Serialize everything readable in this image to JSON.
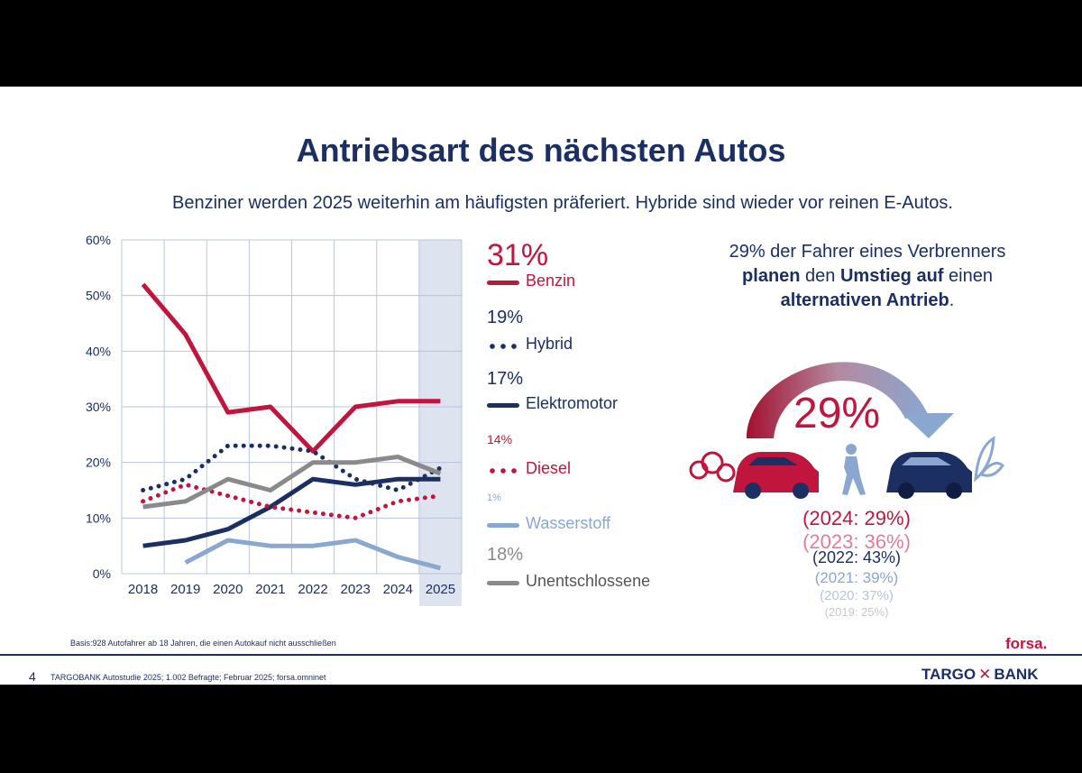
{
  "header": {
    "title": "Antriebsart des nächsten Autos",
    "subtitle": "Benziner werden 2025 weiterhin am häufigsten präferiert. Hybride sind wieder vor reinen E-Autos."
  },
  "chart_data": {
    "type": "line",
    "x": [
      "2018",
      "2019",
      "2020",
      "2021",
      "2022",
      "2023",
      "2024",
      "2025"
    ],
    "yticks": [
      "0%",
      "10%",
      "20%",
      "30%",
      "40%",
      "50%",
      "60%"
    ],
    "ylim": [
      0,
      60
    ],
    "highlight_category": "2025",
    "series": [
      {
        "name": "Benzin",
        "current_label": "31%",
        "values": [
          52,
          43,
          29,
          30,
          22,
          30,
          31,
          31
        ],
        "color": "#c0163e",
        "style": "solid"
      },
      {
        "name": "Hybrid",
        "current_label": "19%",
        "values": [
          15,
          17,
          23,
          23,
          22,
          17,
          15,
          19
        ],
        "color": "#1b2f63",
        "style": "dotted"
      },
      {
        "name": "Elektromotor",
        "current_label": "17%",
        "values": [
          5,
          6,
          8,
          12,
          17,
          16,
          17,
          17
        ],
        "color": "#1b2f63",
        "style": "solid"
      },
      {
        "name": "Diesel",
        "current_label": "14%",
        "values": [
          13,
          16,
          14,
          12,
          11,
          10,
          13,
          14
        ],
        "color": "#c0163e",
        "style": "dotted"
      },
      {
        "name": "Wasserstoff",
        "current_label": "1%",
        "values": [
          null,
          2,
          6,
          5,
          5,
          6,
          3,
          1
        ],
        "color": "#8aa7d0",
        "style": "solid"
      },
      {
        "name": "Unentschlossene",
        "current_label": "18%",
        "values": [
          12,
          13,
          17,
          15,
          20,
          20,
          21,
          18
        ],
        "color": "#8a8a8a",
        "style": "solid"
      }
    ]
  },
  "infographic": {
    "text_part1": "29% der Fahrer eines Verbrenners ",
    "text_bold1": "planen",
    "text_part2": " den ",
    "text_bold2": "Umstieg auf",
    "text_part3": " einen ",
    "text_bold3": "alternativen Antrieb",
    "text_part4": ".",
    "big_value": "29%",
    "history": [
      {
        "label": "(2024: 29%)",
        "color": "#c0163e"
      },
      {
        "label": "(2023: 36%)",
        "color": "#e07d98"
      },
      {
        "label": "(2022: 43%)",
        "color": "#1b2f63"
      },
      {
        "label": "(2021: 39%)",
        "color": "#8aa7d0"
      },
      {
        "label": "(2020: 37%)",
        "color": "#b6c4dc"
      },
      {
        "label": "(2019: 25%)",
        "color": "#c8c8c8"
      }
    ]
  },
  "footer": {
    "basis": "Basis:928 Autofahrer ab 18 Jahren, die einen Autokauf nicht ausschließen",
    "logo_forsa": "forsa.",
    "page_number": "4",
    "source": "TARGOBANK Autostudie 2025; 1.002 Befragte; Februar 2025; forsa.omninet",
    "brand_left": "TARGO",
    "brand_x": "✕",
    "brand_right": "BANK"
  }
}
